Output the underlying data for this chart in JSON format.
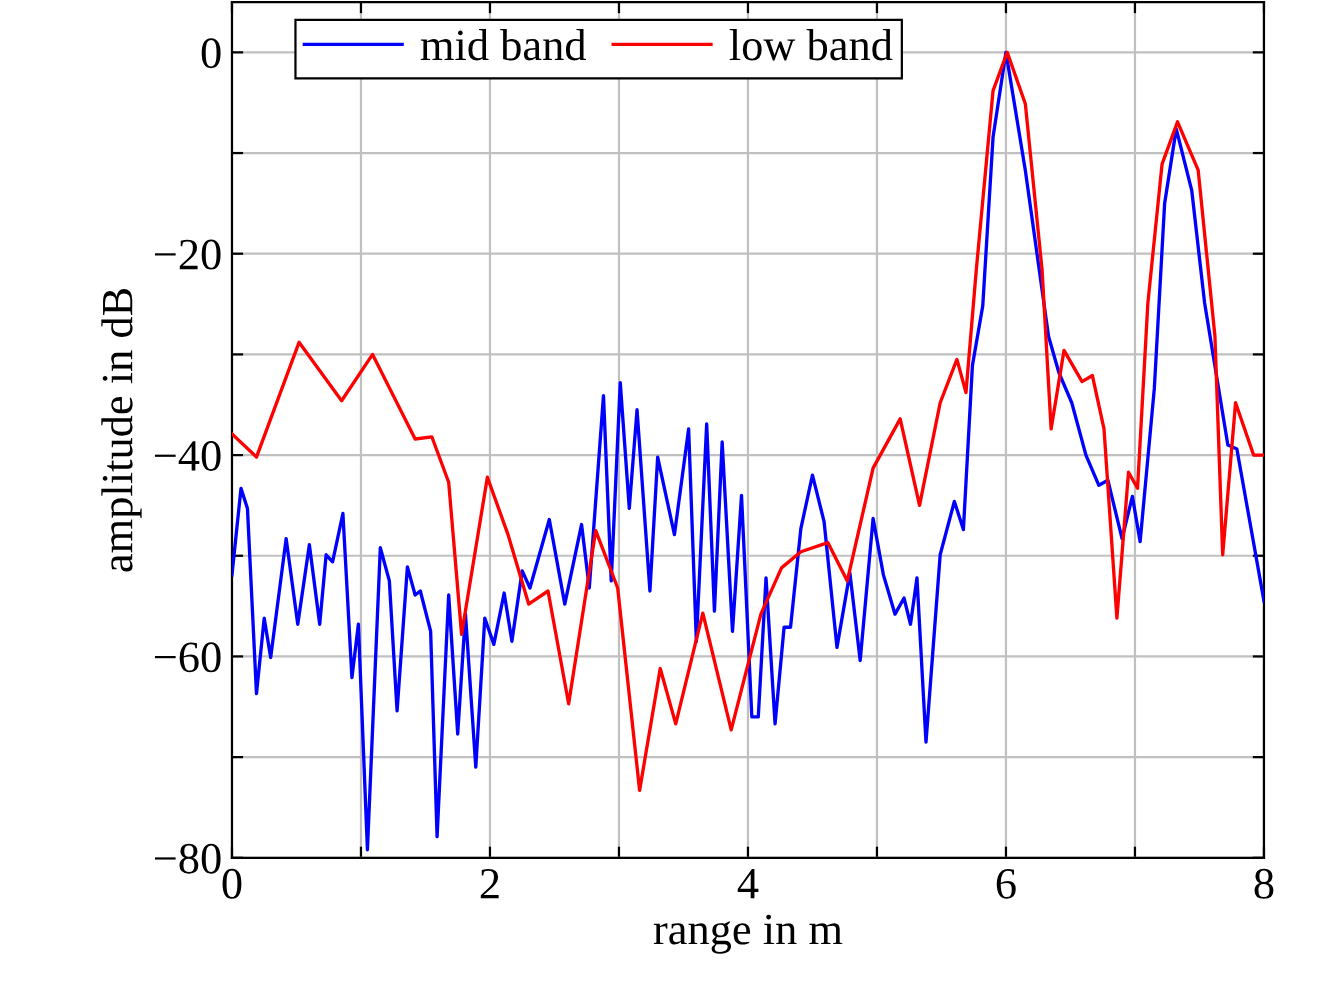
{
  "chart_data": {
    "type": "line",
    "xlabel": "range in m",
    "ylabel": "amplitude in dB",
    "xlim": [
      0,
      8
    ],
    "ylim": [
      -80,
      5
    ],
    "xticks": [
      0,
      {
        "value": 1,
        "label": null
      },
      2,
      {
        "value": 3,
        "label": null
      },
      4,
      {
        "value": 5,
        "label": null
      },
      6,
      {
        "value": 7,
        "label": null
      },
      8
    ],
    "yticks": [
      {
        "value": -80,
        "label": "−80"
      },
      {
        "value": -70,
        "label": null
      },
      {
        "value": -60,
        "label": "−60"
      },
      {
        "value": -50,
        "label": null
      },
      {
        "value": -40,
        "label": "−40"
      },
      {
        "value": -30,
        "label": null
      },
      {
        "value": -20,
        "label": "−20"
      },
      {
        "value": -10,
        "label": null
      },
      0
    ],
    "grid": true,
    "legend": "top left",
    "marker": "none",
    "line_style": "solid",
    "series": [
      {
        "name": "mid band",
        "color": "#0000ff",
        "x": [
          0,
          0.07,
          0.12,
          0.19,
          0.25,
          0.3,
          0.42,
          0.51,
          0.6,
          0.68,
          0.73,
          0.78,
          0.86,
          0.93,
          0.98,
          1.05,
          1.15,
          1.22,
          1.28,
          1.36,
          1.42,
          1.46,
          1.54,
          1.59,
          1.68,
          1.75,
          1.81,
          1.89,
          1.96,
          2.03,
          2.11,
          2.17,
          2.25,
          2.31,
          2.46,
          2.58,
          2.71,
          2.77,
          2.88,
          2.94,
          3.01,
          3.08,
          3.14,
          3.24,
          3.3,
          3.43,
          3.54,
          3.6,
          3.68,
          3.74,
          3.8,
          3.88,
          3.95,
          4.03,
          4.08,
          4.14,
          4.21,
          4.28,
          4.33,
          4.41,
          4.5,
          4.59,
          4.69,
          4.79,
          4.87,
          4.97,
          5.05,
          5.14,
          5.21,
          5.26,
          5.31,
          5.38,
          5.49,
          5.6,
          5.67,
          5.74,
          5.82,
          5.9,
          6.0,
          6.15,
          6.33,
          6.41,
          6.51,
          6.62,
          6.72,
          6.79,
          6.9,
          6.98,
          7.04,
          7.15,
          7.23,
          7.32,
          7.44,
          7.54,
          7.72,
          7.79,
          8.0
        ],
        "values": [
          -51.9,
          -43.3,
          -45.3,
          -63.7,
          -56.2,
          -60.1,
          -48.3,
          -56.8,
          -48.9,
          -56.8,
          -49.9,
          -50.6,
          -45.8,
          -62.1,
          -56.8,
          -79.2,
          -49.2,
          -52.5,
          -65.4,
          -51.1,
          -53.9,
          -53.5,
          -57.5,
          -77.9,
          -53.9,
          -67.7,
          -55.8,
          -71.0,
          -56.2,
          -58.8,
          -53.7,
          -58.5,
          -51.5,
          -53.2,
          -46.4,
          -54.8,
          -46.9,
          -53.2,
          -34.1,
          -52.5,
          -32.8,
          -45.3,
          -35.5,
          -53.5,
          -40.2,
          -47.9,
          -37.4,
          -58.5,
          -36.9,
          -55.5,
          -38.7,
          -57.5,
          -44.0,
          -66.0,
          -66.0,
          -52.2,
          -66.7,
          -57.1,
          -57.1,
          -47.3,
          -42.0,
          -46.6,
          -59.1,
          -51.7,
          -60.4,
          -46.3,
          -51.9,
          -55.8,
          -54.2,
          -56.8,
          -52.2,
          -68.5,
          -49.9,
          -44.6,
          -47.4,
          -31.1,
          -25.2,
          -8.4,
          0,
          -11.7,
          -28.2,
          -31.8,
          -34.8,
          -40.0,
          -43.0,
          -42.5,
          -48.3,
          -44.1,
          -48.6,
          -33.4,
          -15.0,
          -7.6,
          -13.7,
          -24.9,
          -39.0,
          -39.4,
          -54.5
        ]
      },
      {
        "name": "low band",
        "color": "#ff0000",
        "x": [
          0,
          0.19,
          0.52,
          0.85,
          1.09,
          1.42,
          1.55,
          1.68,
          1.78,
          1.98,
          2.14,
          2.3,
          2.45,
          2.61,
          2.82,
          2.99,
          3.16,
          3.32,
          3.44,
          3.65,
          3.87,
          4.1,
          4.26,
          4.41,
          4.62,
          4.77,
          4.97,
          5.18,
          5.33,
          5.49,
          5.62,
          5.69,
          5.77,
          5.9,
          6.01,
          6.15,
          6.28,
          6.35,
          6.45,
          6.59,
          6.67,
          6.76,
          6.86,
          6.95,
          7.02,
          7.1,
          7.21,
          7.33,
          7.49,
          7.62,
          7.68,
          7.78,
          7.92,
          8.0
        ],
        "values": [
          -37.9,
          -40.2,
          -28.8,
          -34.6,
          -30.0,
          -38.4,
          -38.2,
          -42.7,
          -57.8,
          -42.2,
          -47.9,
          -54.8,
          -53.5,
          -64.7,
          -47.5,
          -53.2,
          -73.3,
          -61.2,
          -66.7,
          -55.7,
          -67.3,
          -55.8,
          -51.2,
          -49.6,
          -48.7,
          -52.5,
          -41.3,
          -36.4,
          -45.0,
          -34.8,
          -30.5,
          -33.8,
          -21.6,
          -3.8,
          0,
          -5.1,
          -21.6,
          -37.4,
          -29.6,
          -32.7,
          -32.1,
          -37.4,
          -56.2,
          -41.7,
          -43.3,
          -24.9,
          -11.1,
          -6.9,
          -11.7,
          -28.2,
          -49.9,
          -34.8,
          -40.0,
          -40.0
        ]
      }
    ]
  }
}
